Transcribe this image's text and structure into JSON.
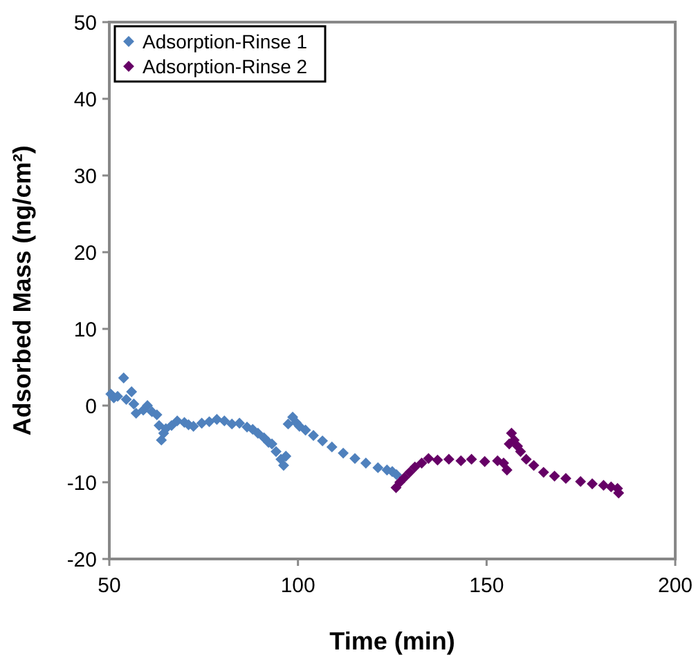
{
  "chart_data": {
    "type": "scatter",
    "xlabel": "Time (min)",
    "ylabel": "Adsorbed Mass (ng/cm²)",
    "xlim": [
      50,
      200
    ],
    "ylim": [
      -20,
      50
    ],
    "xticks": [
      50,
      100,
      150,
      200
    ],
    "yticks": [
      -20,
      -10,
      0,
      10,
      20,
      30,
      40,
      50
    ],
    "legend": "top left",
    "marker": "diamond",
    "series": [
      {
        "name": "Adsorption-Rinse 1",
        "color": "#4f81bd",
        "x": [
          50.4,
          51.2,
          52.2,
          53.8,
          54.5,
          55.9,
          56.5,
          57.1,
          59.0,
          60.1,
          61.3,
          62.6,
          63.2,
          63.8,
          64.4,
          65.0,
          66.5,
          68.0,
          69.9,
          71.0,
          72.3,
          74.5,
          76.5,
          78.5,
          80.5,
          82.5,
          84.5,
          86.5,
          88.0,
          89.4,
          91.0,
          92.2,
          93.1,
          94.2,
          95.5,
          96.2,
          96.8,
          97.4,
          98.6,
          99.5,
          100.4,
          102.0,
          104.1,
          106.5,
          109.0,
          112.0,
          115.1,
          118.0,
          121.2,
          123.6,
          125.0,
          126.1
        ],
        "values": [
          1.5,
          1.0,
          1.2,
          3.6,
          0.8,
          1.8,
          0.2,
          -1.0,
          -0.6,
          0.0,
          -0.8,
          -1.2,
          -2.6,
          -4.5,
          -3.6,
          -3.0,
          -2.6,
          -2.0,
          -2.2,
          -2.5,
          -2.7,
          -2.3,
          -2.1,
          -1.8,
          -2.0,
          -2.4,
          -2.3,
          -2.8,
          -3.1,
          -3.6,
          -4.2,
          -4.8,
          -5.0,
          -6.0,
          -7.0,
          -7.8,
          -6.6,
          -2.4,
          -1.5,
          -2.2,
          -2.7,
          -3.2,
          -3.9,
          -4.6,
          -5.4,
          -6.2,
          -6.9,
          -7.5,
          -8.1,
          -8.4,
          -8.6,
          -9.0
        ]
      },
      {
        "name": "Adsorption-Rinse 2",
        "color": "#660066",
        "x": [
          126.0,
          127.0,
          128.2,
          129.6,
          131.0,
          132.8,
          134.6,
          137.0,
          140.0,
          143.2,
          146.0,
          149.5,
          152.9,
          154.5,
          155.4,
          156.0,
          156.6,
          157.3,
          158.2,
          159.0,
          160.5,
          162.5,
          165.1,
          168.0,
          171.0,
          174.9,
          178.0,
          181.0,
          183.0,
          184.7,
          185.0
        ],
        "values": [
          -10.7,
          -10.0,
          -9.4,
          -8.7,
          -8.0,
          -7.5,
          -6.9,
          -7.1,
          -7.0,
          -7.2,
          -7.0,
          -7.3,
          -7.2,
          -7.5,
          -8.4,
          -5.0,
          -3.6,
          -4.5,
          -5.3,
          -6.0,
          -7.0,
          -7.8,
          -8.7,
          -9.2,
          -9.5,
          -9.9,
          -10.2,
          -10.4,
          -10.6,
          -10.8,
          -11.4
        ]
      }
    ]
  }
}
